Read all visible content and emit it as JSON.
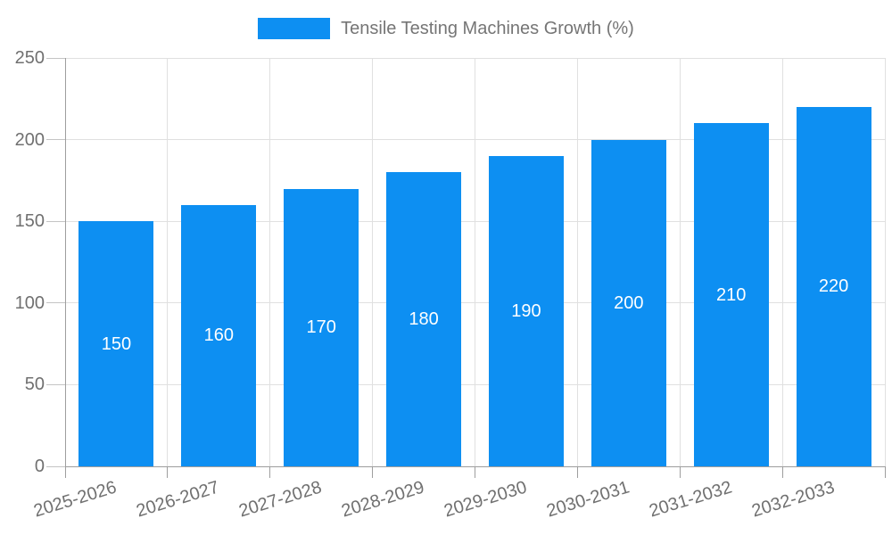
{
  "legend": {
    "label": "Tensile Testing Machines Growth (%)"
  },
  "chart_data": {
    "type": "bar",
    "title": "Tensile Testing Machines Growth (%)",
    "categories": [
      "2025-2026",
      "2026-2027",
      "2027-2028",
      "2028-2029",
      "2029-2030",
      "2030-2031",
      "2031-2032",
      "2032-2033"
    ],
    "values": [
      150,
      160,
      170,
      180,
      190,
      200,
      210,
      220
    ],
    "value_labels": [
      "150",
      "160",
      "170",
      "180",
      "190",
      "200",
      "210",
      "220"
    ],
    "xlabel": "",
    "ylabel": "",
    "ylim": [
      0,
      250
    ],
    "yticks": [
      0,
      50,
      100,
      150,
      200,
      250
    ],
    "grid": "on",
    "legend_position": "top-center",
    "value_label_position": "inside-center"
  },
  "colors": {
    "bar": "#0d8ff2",
    "grid": "#e0e0e0",
    "axis": "#9e9e9e",
    "y_tick": "#c4c4c4",
    "x_tick": "#9e9e9e",
    "axis_label": "#707070",
    "legend_text": "#757575",
    "value_label": "#ffffff",
    "background": "#ffffff"
  }
}
